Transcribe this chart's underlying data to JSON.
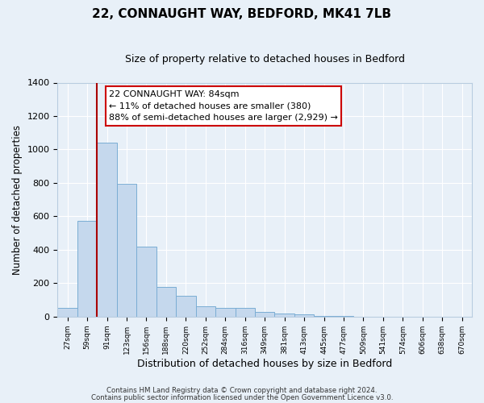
{
  "title": "22, CONNAUGHT WAY, BEDFORD, MK41 7LB",
  "subtitle": "Size of property relative to detached houses in Bedford",
  "xlabel": "Distribution of detached houses by size in Bedford",
  "ylabel": "Number of detached properties",
  "bar_color": "#c5d8ed",
  "bar_edge_color": "#7aadd4",
  "background_color": "#e8f0f8",
  "grid_color": "#d0dce8",
  "bin_labels": [
    "27sqm",
    "59sqm",
    "91sqm",
    "123sqm",
    "156sqm",
    "188sqm",
    "220sqm",
    "252sqm",
    "284sqm",
    "316sqm",
    "349sqm",
    "381sqm",
    "413sqm",
    "445sqm",
    "477sqm",
    "509sqm",
    "541sqm",
    "574sqm",
    "606sqm",
    "638sqm",
    "670sqm"
  ],
  "bar_heights": [
    50,
    575,
    1040,
    795,
    420,
    178,
    125,
    62,
    50,
    50,
    27,
    20,
    15,
    5,
    3,
    0,
    0,
    0,
    0,
    0,
    0
  ],
  "vline_x": 1.5,
  "vline_color": "#aa0000",
  "ylim": [
    0,
    1400
  ],
  "yticks": [
    0,
    200,
    400,
    600,
    800,
    1000,
    1200,
    1400
  ],
  "annotation_text": "22 CONNAUGHT WAY: 84sqm\n← 11% of detached houses are smaller (380)\n88% of semi-detached houses are larger (2,929) →",
  "annotation_box_color": "#ffffff",
  "annotation_box_edge": "#cc0000",
  "footer_line1": "Contains HM Land Registry data © Crown copyright and database right 2024.",
  "footer_line2": "Contains public sector information licensed under the Open Government Licence v3.0.",
  "title_fontsize": 11,
  "subtitle_fontsize": 9
}
